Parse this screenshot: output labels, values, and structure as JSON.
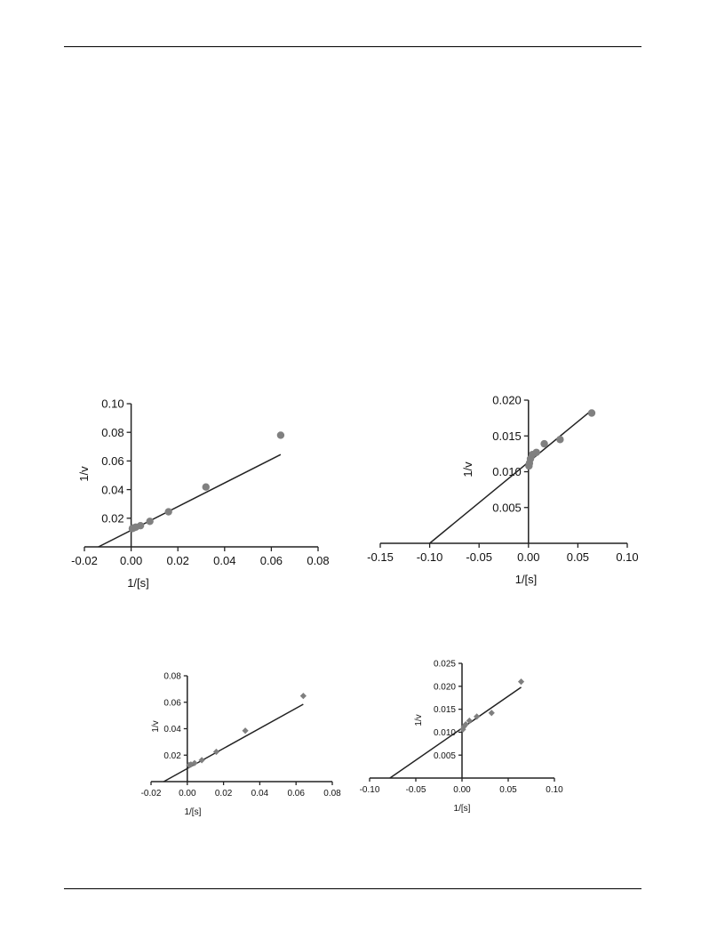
{
  "chart_data": [
    {
      "type": "scatter",
      "xlabel": "1/[s]",
      "ylabel": "1/v",
      "xlim": [
        -0.02,
        0.08
      ],
      "ylim": [
        0,
        0.1
      ],
      "x_ticks": [
        "-0.02",
        "0.00",
        "0.02",
        "0.04",
        "0.06",
        "0.08"
      ],
      "y_ticks": [
        "0.02",
        "0.04",
        "0.06",
        "0.08",
        "0.10"
      ],
      "marker": "circle",
      "series": [
        {
          "points": [
            {
              "x": 0.0005,
              "y": 0.0128
            },
            {
              "x": 0.001,
              "y": 0.0132
            },
            {
              "x": 0.002,
              "y": 0.0138
            },
            {
              "x": 0.004,
              "y": 0.0148
            },
            {
              "x": 0.008,
              "y": 0.0178
            },
            {
              "x": 0.016,
              "y": 0.0245
            },
            {
              "x": 0.032,
              "y": 0.0418
            },
            {
              "x": 0.064,
              "y": 0.078
            }
          ],
          "fit_line": {
            "x": [
              -0.014,
              0.064
            ],
            "y": [
              0.0,
              0.0645
            ]
          }
        }
      ]
    },
    {
      "type": "scatter",
      "xlabel": "1/[s]",
      "ylabel": "1/v",
      "xlim": [
        -0.15,
        0.1
      ],
      "ylim": [
        0,
        0.02
      ],
      "x_ticks": [
        "-0.15",
        "-0.10",
        "-0.05",
        "0.00",
        "0.05",
        "0.10"
      ],
      "y_ticks": [
        "0.005",
        "0.010",
        "0.015",
        "0.020"
      ],
      "marker": "circle",
      "series": [
        {
          "points": [
            {
              "x": 0.0005,
              "y": 0.0108
            },
            {
              "x": 0.001,
              "y": 0.0112
            },
            {
              "x": 0.002,
              "y": 0.0118
            },
            {
              "x": 0.004,
              "y": 0.0124
            },
            {
              "x": 0.008,
              "y": 0.0127
            },
            {
              "x": 0.016,
              "y": 0.0139
            },
            {
              "x": 0.032,
              "y": 0.0145
            },
            {
              "x": 0.064,
              "y": 0.0182
            }
          ],
          "fit_line": {
            "x": [
              -0.1,
              0.064
            ],
            "y": [
              0.0,
              0.0186
            ]
          }
        }
      ]
    },
    {
      "type": "scatter",
      "xlabel": "1/[s]",
      "ylabel": "1/v",
      "xlim": [
        -0.02,
        0.08
      ],
      "ylim": [
        0,
        0.08
      ],
      "x_ticks": [
        "-0.02",
        "0.00",
        "0.02",
        "0.04",
        "0.06",
        "0.08"
      ],
      "y_ticks": [
        "0.02",
        "0.04",
        "0.06",
        "0.08"
      ],
      "marker": "diamond",
      "series": [
        {
          "points": [
            {
              "x": 0.001,
              "y": 0.0125
            },
            {
              "x": 0.002,
              "y": 0.013
            },
            {
              "x": 0.004,
              "y": 0.014
            },
            {
              "x": 0.008,
              "y": 0.0162
            },
            {
              "x": 0.016,
              "y": 0.0225
            },
            {
              "x": 0.032,
              "y": 0.0385
            },
            {
              "x": 0.064,
              "y": 0.0648
            }
          ],
          "fit_line": {
            "x": [
              -0.013,
              0.064
            ],
            "y": [
              0.0,
              0.0585
            ]
          }
        }
      ]
    },
    {
      "type": "scatter",
      "xlabel": "1/[s]",
      "ylabel": "1/v",
      "xlim": [
        -0.1,
        0.1
      ],
      "ylim": [
        0,
        0.025
      ],
      "x_ticks": [
        "-0.10",
        "-0.05",
        "0.00",
        "0.05",
        "0.10"
      ],
      "y_ticks": [
        "0.005",
        "0.010",
        "0.015",
        "0.020",
        "0.025"
      ],
      "marker": "diamond",
      "series": [
        {
          "points": [
            {
              "x": 0.001,
              "y": 0.0106
            },
            {
              "x": 0.002,
              "y": 0.0112
            },
            {
              "x": 0.004,
              "y": 0.0117
            },
            {
              "x": 0.008,
              "y": 0.0125
            },
            {
              "x": 0.016,
              "y": 0.0134
            },
            {
              "x": 0.032,
              "y": 0.0142
            },
            {
              "x": 0.064,
              "y": 0.021
            }
          ],
          "fit_line": {
            "x": [
              -0.078,
              0.064
            ],
            "y": [
              0.0,
              0.0198
            ]
          }
        }
      ]
    }
  ]
}
